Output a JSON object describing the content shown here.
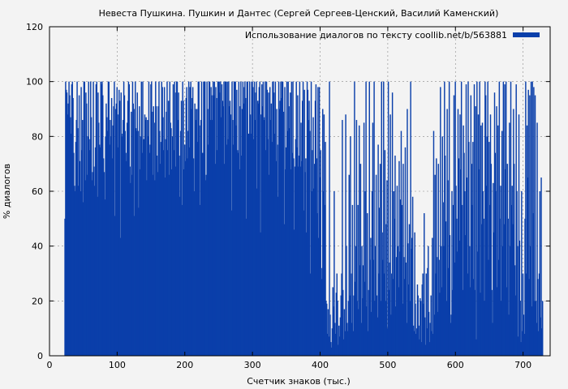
{
  "chart_data": {
    "type": "bar",
    "title": "Невеста Пушкина. Пушкин и Дантес (Сергей Сергеев-Ценский, Василий Каменский)",
    "xlabel": "Счетчик знаков (тыс.)",
    "ylabel": "% диалогов",
    "xlim": [
      0,
      740
    ],
    "ylim": [
      0,
      120
    ],
    "xticks": [
      "0",
      "100",
      "200",
      "300",
      "400",
      "500",
      "600",
      "700"
    ],
    "yticks": [
      "0",
      "20",
      "40",
      "60",
      "80",
      "100",
      "120"
    ],
    "grid": true,
    "legend_position": "top-right",
    "series": [
      {
        "name": "Использование диалогов по тексту coollib.net/b/563881",
        "color": "#0a3faa",
        "x_start": 22,
        "x_step": 1,
        "values": [
          50,
          100,
          97,
          96,
          88,
          92,
          100,
          95,
          87,
          81,
          99,
          100,
          94,
          74,
          62,
          60,
          78,
          86,
          100,
          83,
          62,
          95,
          71,
          60,
          98,
          75,
          86,
          56,
          100,
          100,
          64,
          96,
          92,
          66,
          80,
          100,
          79,
          75,
          100,
          87,
          64,
          67,
          100,
          69,
          62,
          76,
          99,
          100,
          58,
          96,
          85,
          77,
          76,
          100,
          99,
          100,
          95,
          72,
          67,
          57,
          80,
          92,
          87,
          82,
          100,
          100,
          77,
          86,
          80,
          94,
          72,
          84,
          91,
          100,
          51,
          90,
          92,
          98,
          76,
          88,
          97,
          93,
          43,
          96,
          80,
          81,
          86,
          100,
          95,
          82,
          74,
          71,
          85,
          93,
          100,
          99,
          69,
          63,
          89,
          66,
          100,
          92,
          51,
          90,
          100,
          83,
          82,
          96,
          82,
          54,
          91,
          68,
          80,
          100,
          74,
          100,
          79,
          79,
          88,
          86,
          87,
          64,
          86,
          80,
          100,
          74,
          77,
          99,
          100,
          89,
          66,
          91,
          85,
          64,
          100,
          91,
          73,
          67,
          91,
          100,
          82,
          70,
          78,
          100,
          98,
          87,
          75,
          98,
          65,
          79,
          89,
          100,
          75,
          93,
          66,
          100,
          85,
          83,
          68,
          80,
          99,
          75,
          100,
          96,
          69,
          100,
          100,
          86,
          96,
          73,
          58,
          82,
          93,
          55,
          100,
          93,
          68,
          77,
          71,
          94,
          98,
          72,
          82,
          100,
          76,
          98,
          100,
          90,
          94,
          98,
          72,
          60,
          92,
          90,
          86,
          90,
          78,
          100,
          100,
          84,
          55,
          86,
          100,
          74,
          74,
          100,
          100,
          100,
          64,
          66,
          100,
          90,
          77,
          100,
          100,
          86,
          98,
          95,
          86,
          100,
          95,
          100,
          70,
          98,
          94,
          75,
          100,
          100,
          100,
          96,
          100,
          87,
          99,
          93,
          91,
          100,
          70,
          100,
          100,
          77,
          100,
          79,
          100,
          91,
          93,
          88,
          53,
          100,
          86,
          77,
          100,
          100,
          100,
          84,
          97,
          75,
          74,
          100,
          68,
          91,
          100,
          73,
          90,
          100,
          92,
          98,
          100,
          94,
          50,
          100,
          100,
          81,
          81,
          100,
          88,
          81,
          100,
          100,
          98,
          79,
          100,
          86,
          96,
          100,
          61,
          93,
          92,
          98,
          100,
          45,
          88,
          99,
          91,
          100,
          86,
          87,
          100,
          75,
          100,
          97,
          79,
          96,
          66,
          98,
          86,
          92,
          78,
          100,
          100,
          96,
          81,
          100,
          71,
          90,
          77,
          58,
          100,
          90,
          93,
          100,
          94,
          100,
          100,
          89,
          48,
          98,
          68,
          76,
          100,
          82,
          100,
          91,
          83,
          96,
          68,
          100,
          74,
          100,
          72,
          46,
          69,
          79,
          100,
          76,
          95,
          69,
          73,
          100,
          69,
          85,
          71,
          93,
          100,
          53,
          97,
          67,
          72,
          45,
          100,
          97,
          86,
          93,
          82,
          30,
          100,
          60,
          75,
          87,
          61,
          70,
          93,
          99,
          72,
          52,
          98,
          43,
          98,
          65,
          75,
          32,
          28,
          90,
          60,
          88,
          55,
          78,
          20,
          19,
          8,
          17,
          7,
          100,
          15,
          5,
          3,
          10,
          25,
          18,
          60,
          12,
          8,
          23,
          30,
          20,
          4,
          11,
          7,
          14,
          22,
          30,
          86,
          24,
          6,
          17,
          9,
          88,
          40,
          12,
          9,
          20,
          66,
          22,
          80,
          30,
          12,
          55,
          9,
          22,
          100,
          27,
          40,
          86,
          20,
          55,
          17,
          84,
          33,
          70,
          12,
          40,
          21,
          33,
          85,
          27,
          60,
          100,
          18,
          52,
          9,
          24,
          100,
          35,
          43,
          16,
          60,
          85,
          35,
          100,
          20,
          40,
          66,
          22,
          14,
          77,
          30,
          54,
          70,
          20,
          100,
          45,
          35,
          100,
          30,
          75,
          20,
          48,
          64,
          10,
          100,
          24,
          34,
          88,
          15,
          30,
          96,
          28,
          60,
          50,
          73,
          18,
          36,
          62,
          40,
          25,
          71,
          38,
          57,
          82,
          55,
          19,
          70,
          36,
          28,
          76,
          34,
          12,
          90,
          41,
          26,
          48,
          20,
          100,
          39,
          43,
          58,
          11,
          9,
          45,
          19,
          8,
          10,
          26,
          22,
          11,
          6,
          21,
          20,
          5,
          26,
          30,
          19,
          52,
          14,
          4,
          30,
          10,
          32,
          40,
          16,
          5,
          12,
          22,
          9,
          43,
          8,
          82,
          15,
          66,
          30,
          72,
          36,
          16,
          70,
          35,
          23,
          98,
          40,
          25,
          80,
          56,
          40,
          100,
          73,
          49,
          20,
          90,
          64,
          32,
          100,
          44,
          12,
          15,
          60,
          24,
          55,
          95,
          34,
          100,
          62,
          50,
          38,
          90,
          72,
          42,
          88,
          68,
          100,
          55,
          24,
          84,
          74,
          60,
          44,
          99,
          65,
          30,
          100,
          78,
          40,
          25,
          95,
          70,
          55,
          78,
          28,
          99,
          24,
          91,
          6,
          100,
          38,
          88,
          68,
          100,
          23,
          84,
          48,
          85,
          60,
          50,
          20,
          100,
          95,
          62,
          80,
          100,
          35,
          78,
          55,
          88,
          70,
          24,
          12,
          63,
          45,
          96,
          74,
          60,
          91,
          25,
          84,
          35,
          100,
          50,
          62,
          20,
          82,
          40,
          100,
          48,
          99,
          68,
          100,
          25,
          70,
          50,
          15,
          85,
          40,
          100,
          55,
          62,
          48,
          90,
          70,
          33,
          22,
          99,
          60,
          40,
          7,
          88,
          42,
          20,
          5,
          60,
          9,
          30,
          15,
          8,
          50,
          100,
          30,
          84,
          65,
          97,
          28,
          95,
          40,
          100,
          18,
          100,
          52,
          98,
          20,
          95,
          20,
          12,
          85,
          28,
          9,
          30,
          60,
          14,
          65,
          10,
          20
        ]
      }
    ]
  }
}
